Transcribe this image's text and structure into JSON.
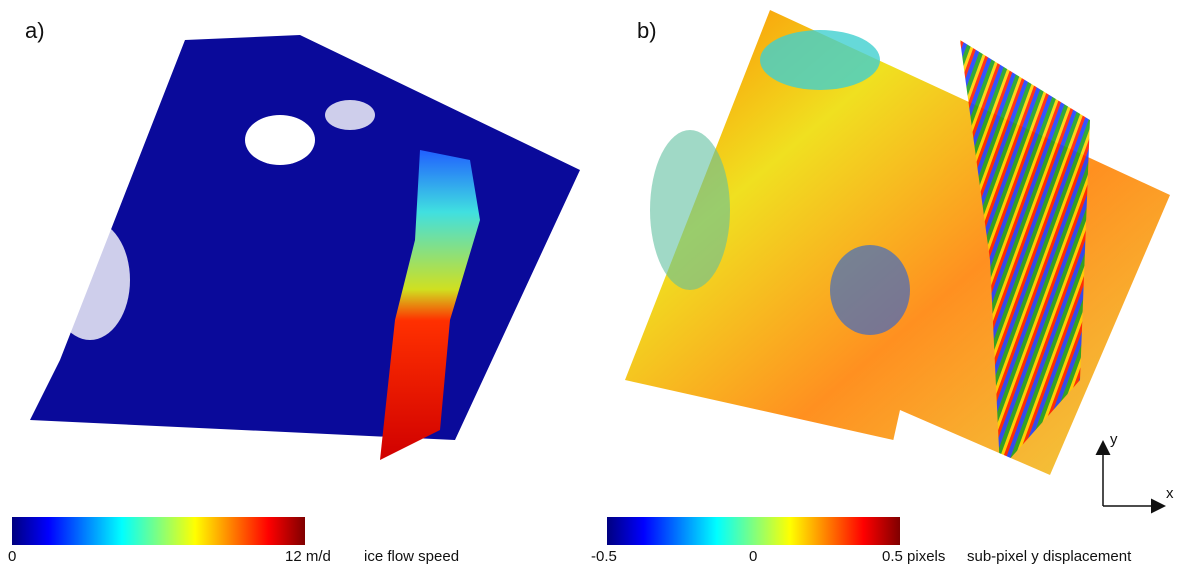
{
  "panels": [
    {
      "label": "a)",
      "colorbar": {
        "ticks": [
          "0",
          "12 m/d"
        ],
        "title": "ice flow speed"
      }
    },
    {
      "label": "b)",
      "colorbar": {
        "ticks": [
          "-0.5",
          "0",
          "0.5 pixels"
        ],
        "title": "sub-pixel y displacement"
      }
    }
  ],
  "axes": {
    "y": "y",
    "x": "x"
  }
}
